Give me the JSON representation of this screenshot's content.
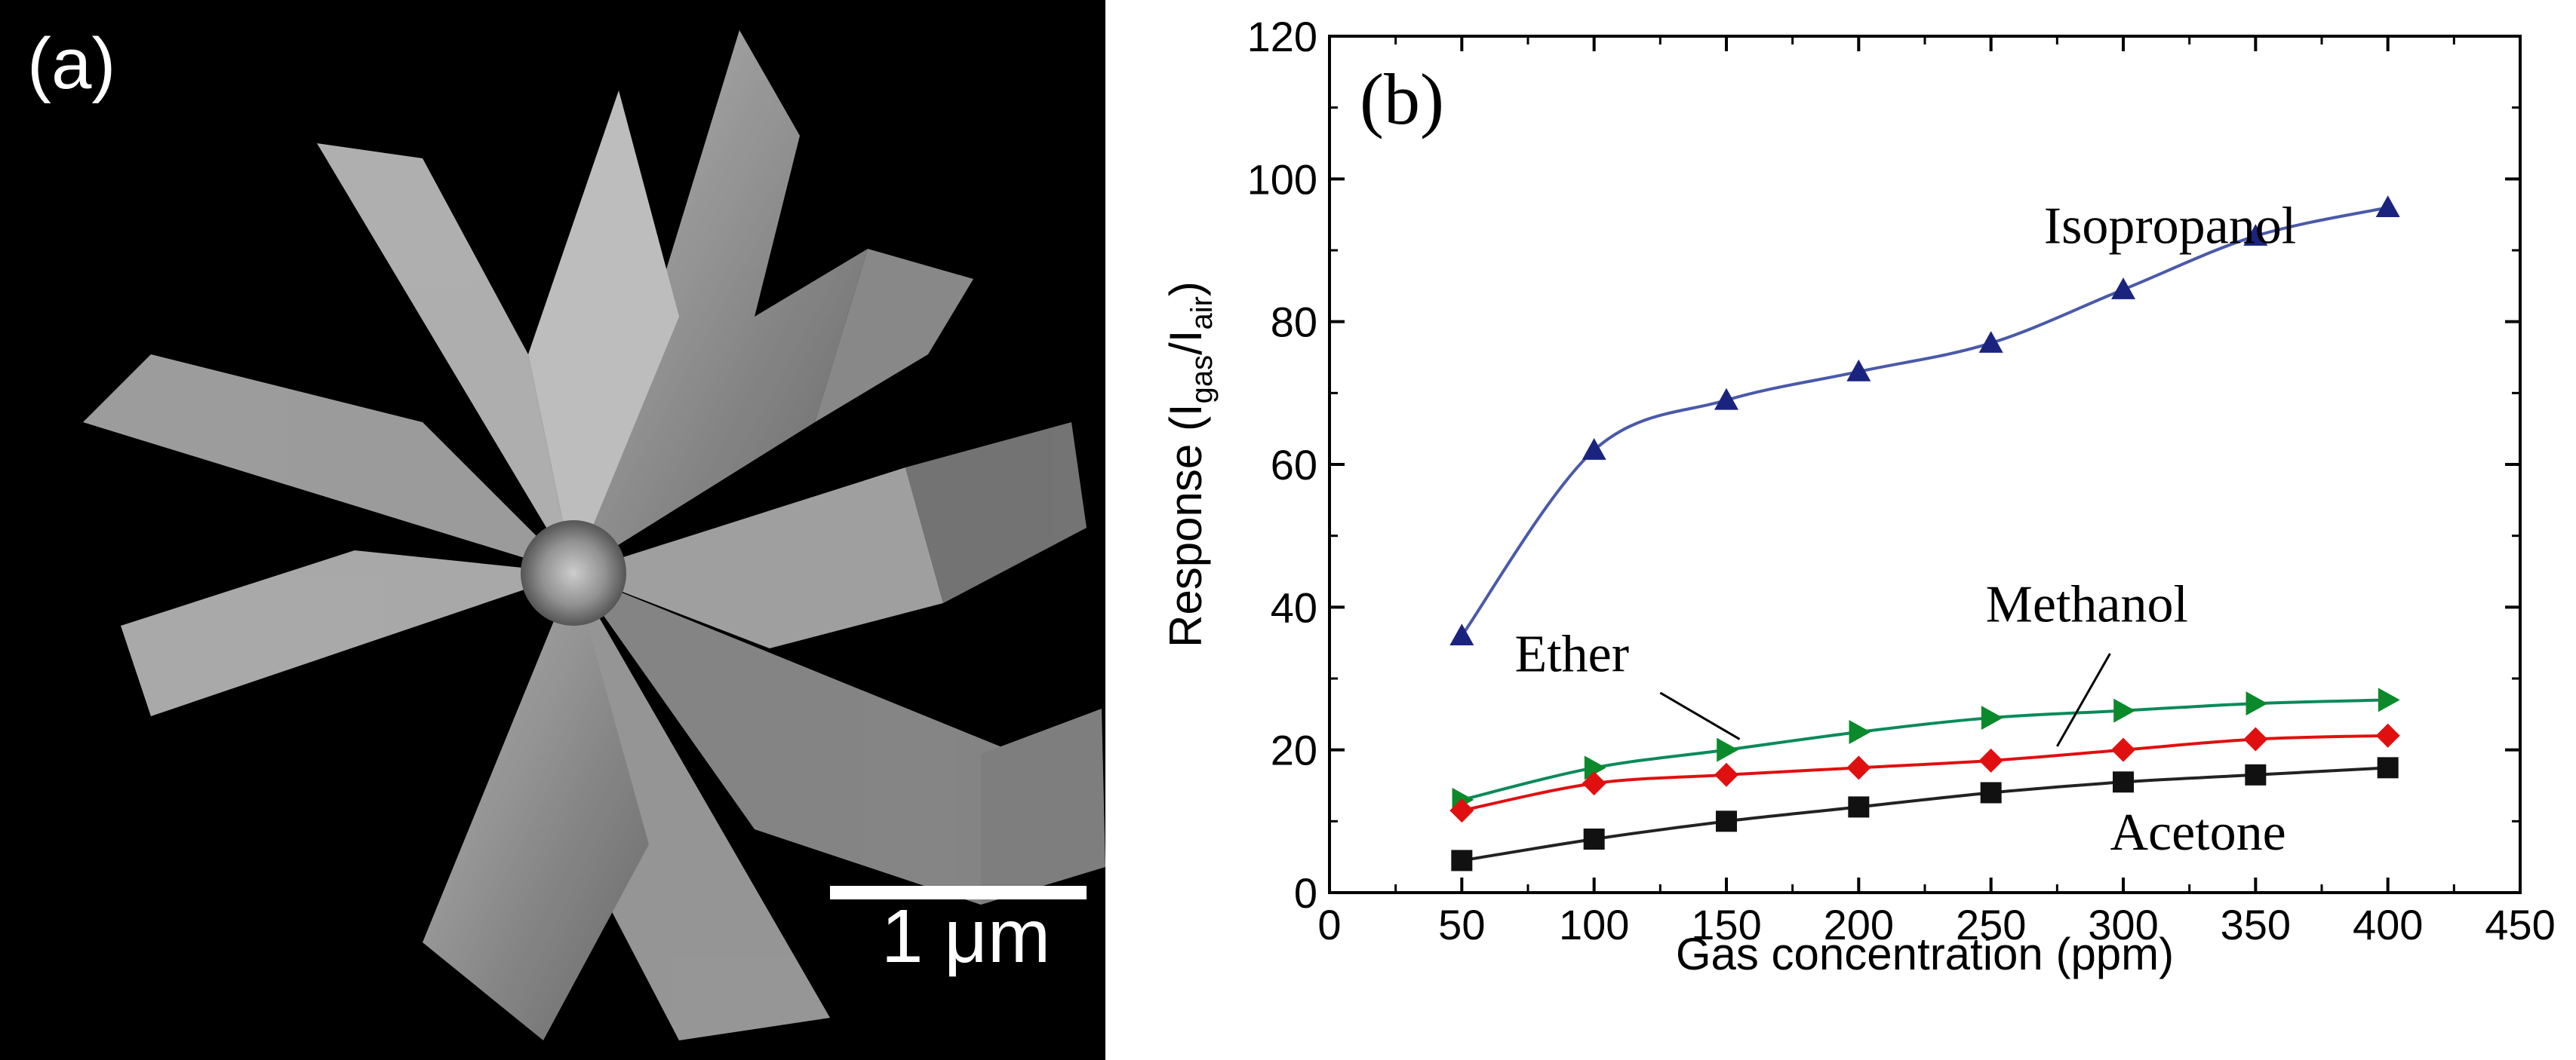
{
  "panel_a": {
    "label": "(a)",
    "scale_bar": "1 μm"
  },
  "chart_data": {
    "type": "line",
    "panel_label": "(b)",
    "xlabel": "Gas concentration (ppm)",
    "ylabel": {
      "base": "Response (I",
      "sub1": "gas",
      "mid": "/I",
      "sub2": "air",
      "end": ")"
    },
    "xlim": [
      0,
      450
    ],
    "ylim": [
      0,
      120
    ],
    "xticks": [
      0,
      50,
      100,
      150,
      200,
      250,
      300,
      350,
      400,
      450
    ],
    "yticks": [
      0,
      20,
      40,
      60,
      80,
      100,
      120
    ],
    "x": [
      50,
      100,
      150,
      200,
      250,
      300,
      350,
      400
    ],
    "series": [
      {
        "name": "Isopropanol",
        "marker": "triangle-up",
        "color": "#1a237e",
        "line_color": "#4a5aa8",
        "values": [
          36,
          62,
          69,
          73,
          77,
          84.5,
          92,
          96
        ]
      },
      {
        "name": "Ether",
        "marker": "triangle-right",
        "color": "#0a8a2a",
        "line_color": "#0a8a5a",
        "values": [
          13,
          17.5,
          20,
          22.5,
          24.5,
          25.5,
          26.5,
          27
        ]
      },
      {
        "name": "Methanol",
        "marker": "diamond",
        "color": "#e01010",
        "line_color": "#e01010",
        "values": [
          11.5,
          15.3,
          16.5,
          17.5,
          18.5,
          20,
          21.5,
          22
        ]
      },
      {
        "name": "Acetone",
        "marker": "square",
        "color": "#111111",
        "line_color": "#222222",
        "values": [
          4.5,
          7.5,
          10,
          12,
          14,
          15.5,
          16.5,
          17.5
        ]
      }
    ],
    "annotations": [
      {
        "text": "Isopropanol",
        "x": 270,
        "y": 91
      },
      {
        "text": "Ether",
        "x": 70,
        "y": 31
      },
      {
        "text": "Methanol",
        "x": 248,
        "y": 38
      },
      {
        "text": "Acetone",
        "x": 295,
        "y": 6
      }
    ]
  }
}
